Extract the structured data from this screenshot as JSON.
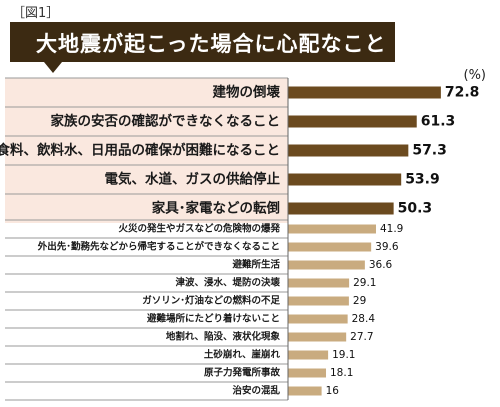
{
  "figure_label": "［図1］",
  "chart_data": {
    "type": "bar",
    "orientation": "horizontal",
    "title": "大地震が起こった場合に心配なこと",
    "unit": "(%)",
    "categories": [
      "建物の倒壊",
      "家族の安否の確認ができなくなること",
      "食料、飲料水、日用品の確保が困難になること",
      "電気、水道、ガスの供給停止",
      "家具･家電などの転倒",
      "火災の発生やガスなどの危険物の爆発",
      "外出先･勤務先などから帰宅することができなくなること",
      "避難所生活",
      "津波、浸水、堤防の決壊",
      "ガソリン･灯油などの燃料の不足",
      "避難場所にたどり着けないこと",
      "地割れ、陥没、液状化現象",
      "土砂崩れ、崖崩れ",
      "原子力発電所事故",
      "治安の混乱"
    ],
    "values": [
      72.8,
      61.3,
      57.3,
      53.9,
      50.3,
      41.9,
      39.6,
      36.6,
      29.1,
      29,
      28.4,
      27.7,
      19.1,
      18.1,
      16
    ],
    "value_labels": [
      "72.8",
      "61.3",
      "57.3",
      "53.9",
      "50.3",
      "41.9",
      "39.6",
      "36.6",
      "29.1",
      "29",
      "28.4",
      "27.7",
      "19.1",
      "18.1",
      "16"
    ],
    "highlight_top_n": 5,
    "colors": {
      "title_bg": "#3c2a12",
      "top_bar": "#6b4a1f",
      "rest_bar": "#c9ab7f",
      "top_row_bg": "#fae8df",
      "divider": "#9a9a9a"
    }
  }
}
